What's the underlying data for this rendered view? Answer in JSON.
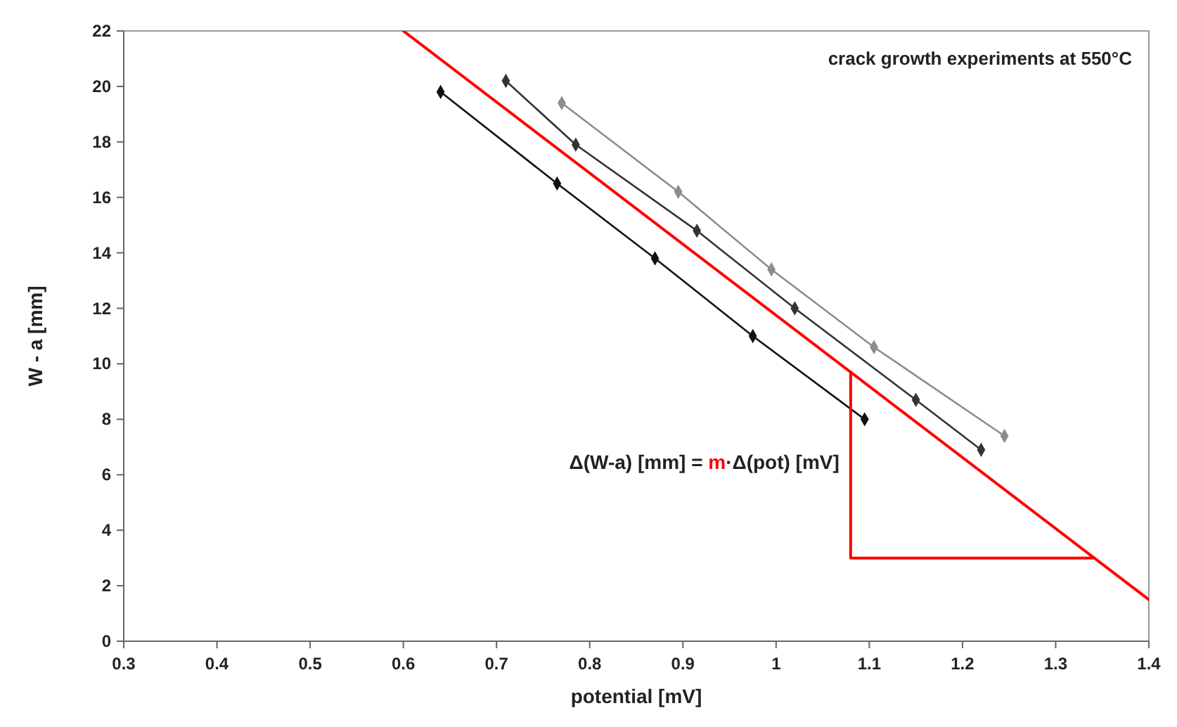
{
  "chart_data": {
    "type": "line",
    "xlabel": "potential [mV]",
    "ylabel": "W - a [mm]",
    "annotations": [
      "crack growth experiments at 550°C",
      "Δ(W-a) [mm] = ",
      "m",
      "·Δ(pot) [mV]"
    ],
    "xlim": [
      0.3,
      1.4
    ],
    "xticks": [
      0.3,
      0.4,
      0.5,
      0.6,
      0.7,
      0.8,
      0.9,
      1,
      1.1,
      1.2,
      1.3,
      1.4
    ],
    "ylim": [
      0,
      22
    ],
    "yticks": [
      0,
      2,
      4,
      6,
      8,
      10,
      12,
      14,
      16,
      18,
      20,
      22
    ],
    "grid": false,
    "line_style": "solid",
    "series": [
      {
        "color": "#111111",
        "marker": "diamond",
        "x": [
          0.64,
          0.765,
          0.87,
          0.975,
          1.095
        ],
        "values": [
          19.8,
          16.5,
          13.8,
          11.0,
          8.0
        ]
      },
      {
        "color": "#333333",
        "marker": "diamond",
        "x": [
          0.71,
          0.785,
          0.915,
          1.02,
          1.15,
          1.22
        ],
        "values": [
          20.2,
          17.9,
          14.8,
          12.0,
          8.7,
          6.9
        ]
      },
      {
        "color": "#8c8c8c",
        "marker": "diamond",
        "x": [
          0.77,
          0.895,
          0.995,
          1.105,
          1.245
        ],
        "values": [
          19.4,
          16.2,
          13.4,
          10.6,
          7.4
        ]
      },
      {
        "color": "#ff0000",
        "marker": "none",
        "x": [
          0.6,
          1.4
        ],
        "values": [
          22,
          1.5
        ]
      },
      {
        "color": "#ff0000",
        "marker": "none",
        "x": [
          1.08,
          1.08,
          1.34
        ],
        "values": [
          9.7,
          3.0,
          3.0
        ]
      }
    ]
  }
}
